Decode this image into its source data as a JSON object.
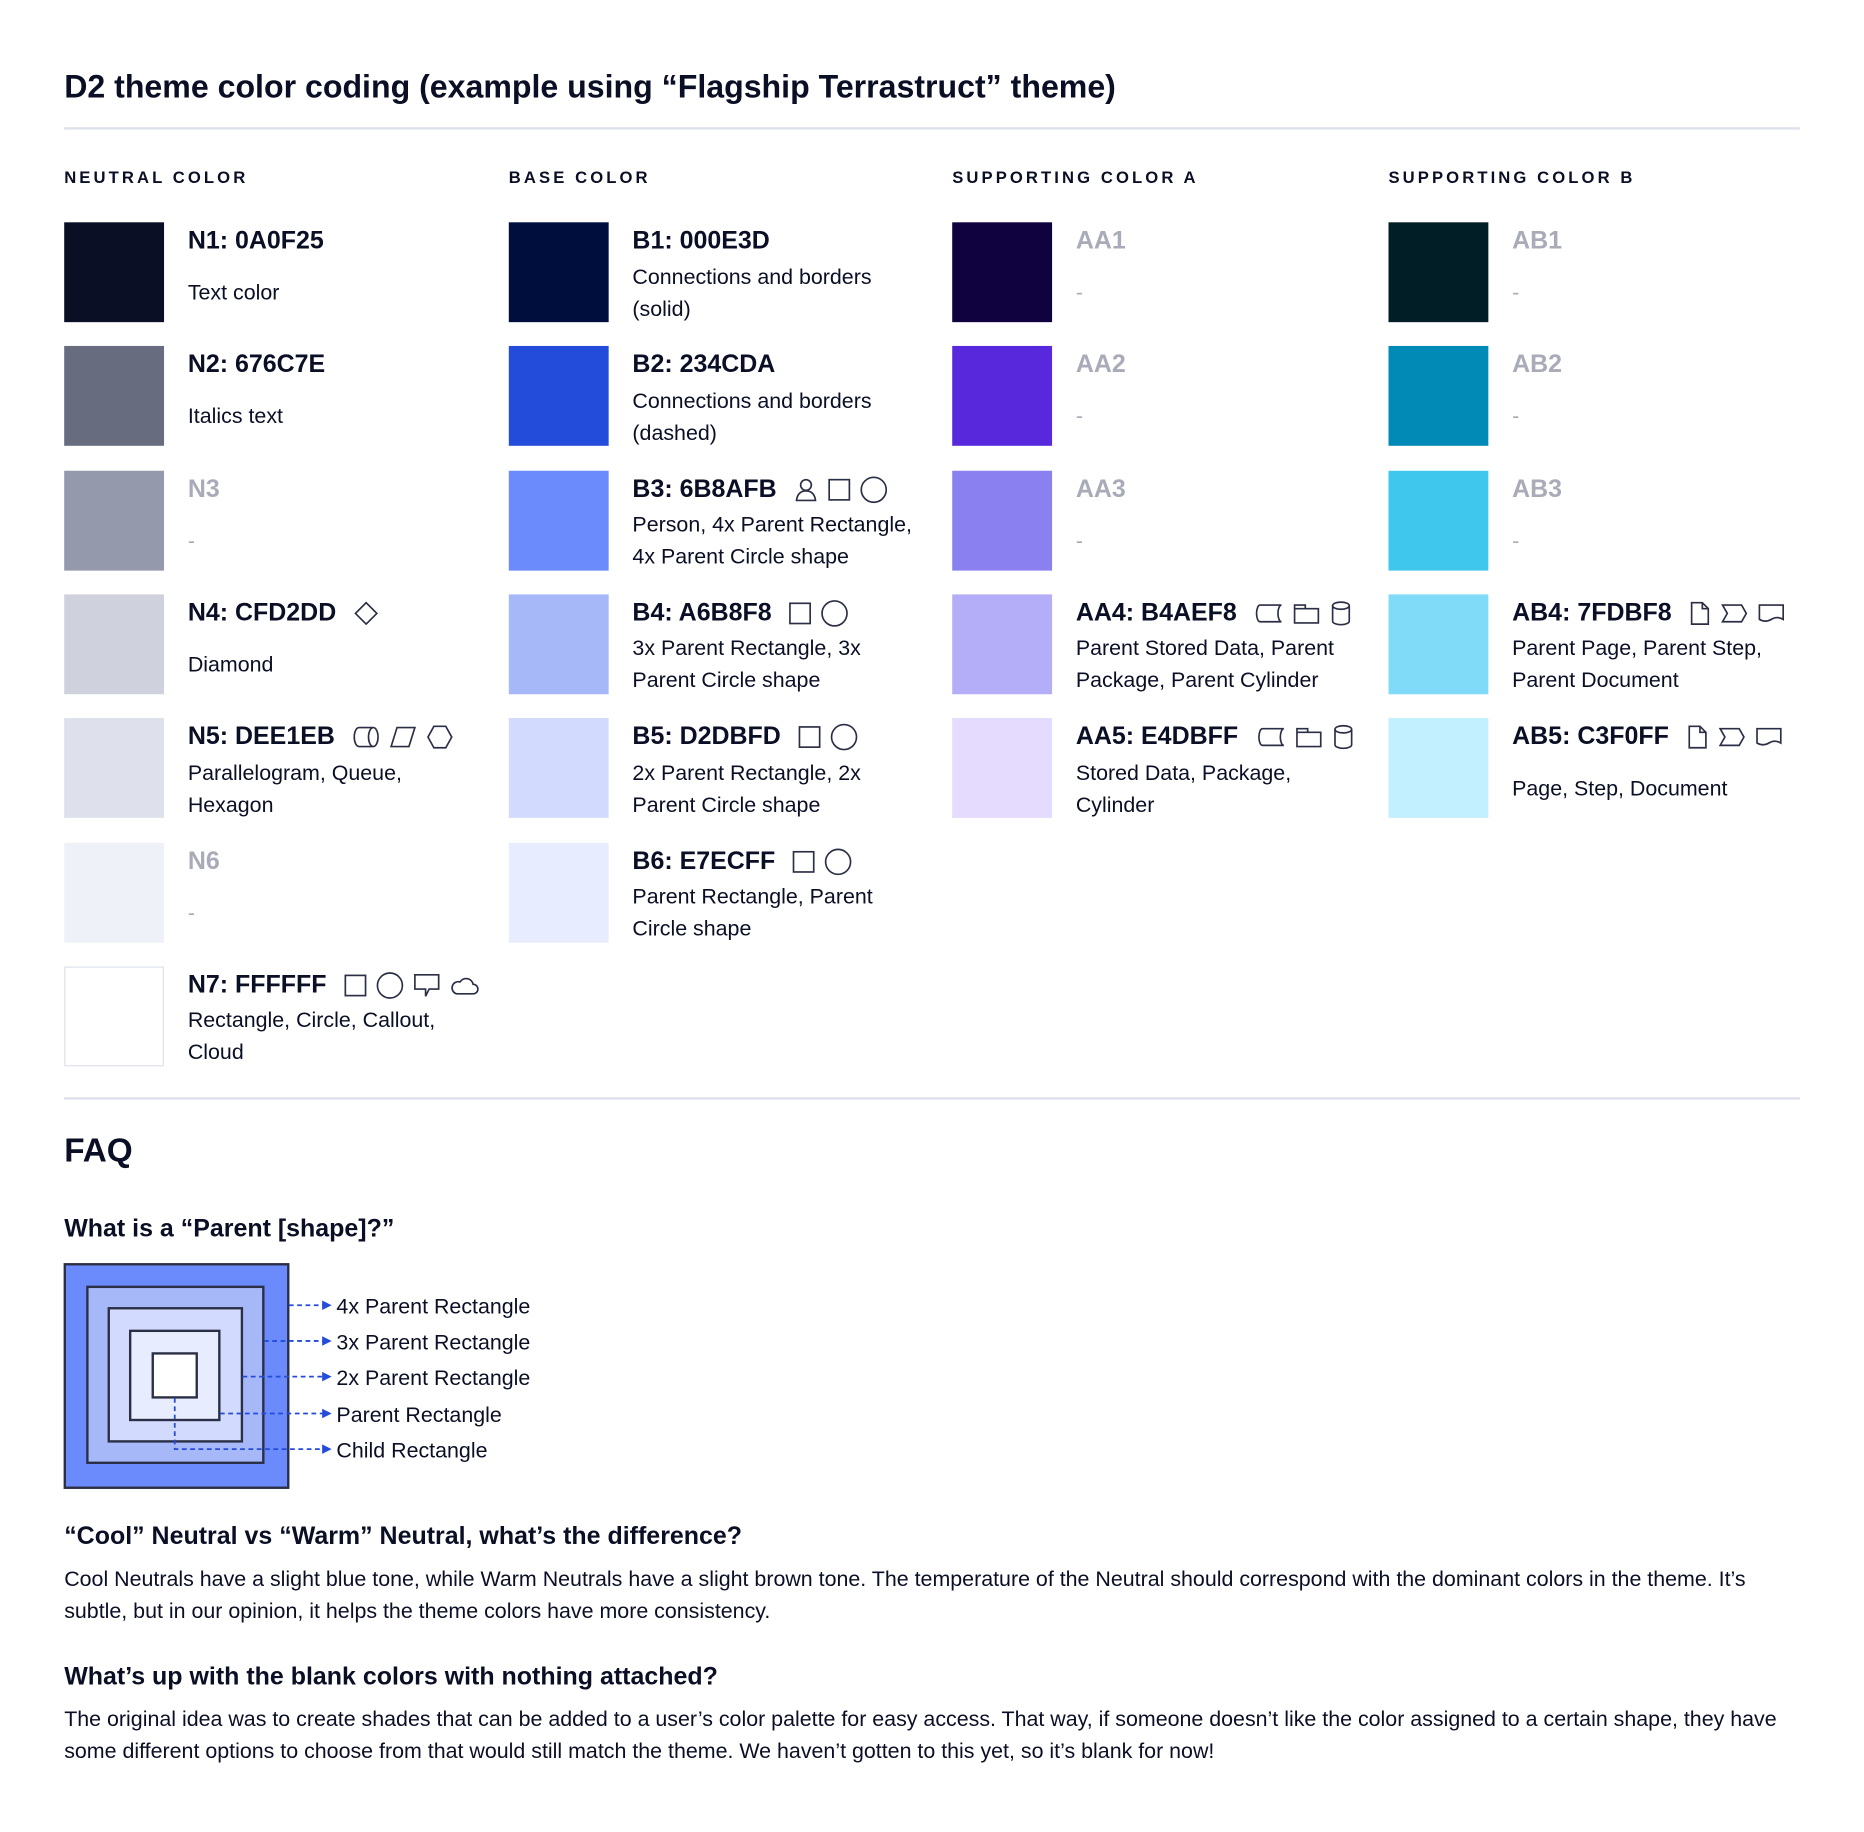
{
  "title": "D2 theme color coding (example using “Flagship Terrastruct” theme)",
  "columns": [
    {
      "heading": "NEUTRAL COLOR",
      "entries": [
        {
          "label": "N1: 0A0F25",
          "color": "#0A0F25",
          "icons": [],
          "desc": "Text color",
          "blank": false
        },
        {
          "label": "N2: 676C7E",
          "color": "#676C7E",
          "icons": [],
          "desc": "Italics text",
          "blank": false
        },
        {
          "label": "N3",
          "color": "#9499AB",
          "icons": [],
          "desc": "-",
          "blank": true
        },
        {
          "label": "N4: CFD2DD",
          "color": "#CFD2DD",
          "icons": [
            "diamond-icon"
          ],
          "desc": "Diamond",
          "blank": false
        },
        {
          "label": "N5: DEE1EB",
          "color": "#DEE1EB",
          "icons": [
            "queue-icon",
            "parallelogram-icon",
            "hexagon-icon"
          ],
          "desc": "Parallelogram, Queue, Hexagon",
          "blank": false
        },
        {
          "label": "N6",
          "color": "#EEF1F8",
          "icons": [],
          "desc": "-",
          "blank": true
        },
        {
          "label": "N7: FFFFFF",
          "color": "#FFFFFF",
          "icons": [
            "rectangle-icon",
            "circle-icon",
            "callout-icon",
            "cloud-icon"
          ],
          "desc": "Rectangle, Circle, Callout, Cloud",
          "blank": false
        }
      ]
    },
    {
      "heading": "BASE COLOR",
      "entries": [
        {
          "label": "B1: 000E3D",
          "color": "#000E3D",
          "icons": [],
          "desc": "Connections and borders (solid)",
          "blank": false
        },
        {
          "label": "B2: 234CDA",
          "color": "#234CDA",
          "icons": [],
          "desc": "Connections and borders (dashed)",
          "blank": false
        },
        {
          "label": "B3: 6B8AFB",
          "color": "#6B8AFB",
          "icons": [
            "person-icon",
            "rectangle-icon",
            "circle-icon"
          ],
          "desc": "Person, 4x Parent Rectangle, 4x Parent Circle shape",
          "blank": false
        },
        {
          "label": "B4: A6B8F8",
          "color": "#A6B8F8",
          "icons": [
            "rectangle-icon",
            "circle-icon"
          ],
          "desc": "3x Parent Rectangle, 3x Parent Circle shape",
          "blank": false
        },
        {
          "label": "B5: D2DBFD",
          "color": "#D2DBFD",
          "icons": [
            "rectangle-icon",
            "circle-icon"
          ],
          "desc": "2x Parent Rectangle, 2x Parent Circle shape",
          "blank": false
        },
        {
          "label": "B6: E7ECFF",
          "color": "#E7ECFF",
          "icons": [
            "rectangle-icon",
            "circle-icon"
          ],
          "desc": "Parent Rectangle, Parent Circle shape",
          "blank": false
        }
      ]
    },
    {
      "heading": "SUPPORTING COLOR A",
      "entries": [
        {
          "label": "AA1",
          "color": "#10023F",
          "icons": [],
          "desc": "-",
          "blank": true
        },
        {
          "label": "AA2",
          "color": "#5828DC",
          "icons": [],
          "desc": "-",
          "blank": true
        },
        {
          "label": "AA3",
          "color": "#8B80F0",
          "icons": [],
          "desc": "-",
          "blank": true
        },
        {
          "label": "AA4: B4AEF8",
          "color": "#B4AEF8",
          "icons": [
            "stored-data-icon",
            "package-icon",
            "cylinder-icon"
          ],
          "desc": "Parent Stored Data, Parent Package,  Parent Cylinder",
          "blank": false
        },
        {
          "label": "AA5: E4DBFF",
          "color": "#E4DBFF",
          "icons": [
            "stored-data-icon",
            "package-icon",
            "cylinder-icon"
          ],
          "desc": "Stored Data, Package, Cylinder",
          "blank": false
        }
      ]
    },
    {
      "heading": "SUPPORTING COLOR B",
      "entries": [
        {
          "label": "AB1",
          "color": "#011E26",
          "icons": [],
          "desc": "-",
          "blank": true
        },
        {
          "label": "AB2",
          "color": "#018AB6",
          "icons": [],
          "desc": "-",
          "blank": true
        },
        {
          "label": "AB3",
          "color": "#40C7EE",
          "icons": [],
          "desc": "-",
          "blank": true
        },
        {
          "label": "AB4: 7FDBF8",
          "color": "#7FDBF8",
          "icons": [
            "page-icon",
            "step-icon",
            "document-icon"
          ],
          "desc": "Parent Page, Parent Step, Parent Document",
          "blank": false
        },
        {
          "label": "AB5: C3F0FF",
          "color": "#C3F0FF",
          "icons": [
            "page-icon",
            "step-icon",
            "document-icon"
          ],
          "desc": "Page, Step, Document",
          "blank": false
        }
      ]
    }
  ],
  "faq": {
    "heading": "FAQ",
    "q1": "What is a “Parent [shape]?”",
    "diagram_labels": [
      "4x Parent Rectangle",
      "3x Parent Rectangle",
      "2x Parent Rectangle",
      "Parent Rectangle",
      "Child Rectangle"
    ],
    "diagram_colors": [
      "#6B8AFB",
      "#A6B8F8",
      "#D2DBFD",
      "#E7ECFF",
      "#FFFFFF"
    ],
    "arrow_color": "#234CDA",
    "q2": "“Cool” Neutral vs “Warm” Neutral, what’s the difference?",
    "a2": "Cool Neutrals have a slight blue tone, while Warm Neutrals have a slight brown tone. The temperature of the Neutral should correspond with the dominant colors in the theme. It’s subtle, but in our opinion, it helps the theme colors have more consistency.",
    "q3": "What’s up with the blank colors with nothing attached?",
    "a3": "The original idea was to create shades that can be added to a user’s color palette for easy access. That way, if someone doesn’t like the color assigned to a certain shape, they have some different options to choose from that would still match the theme. We haven’t gotten to this yet, so it’s blank for now!"
  }
}
